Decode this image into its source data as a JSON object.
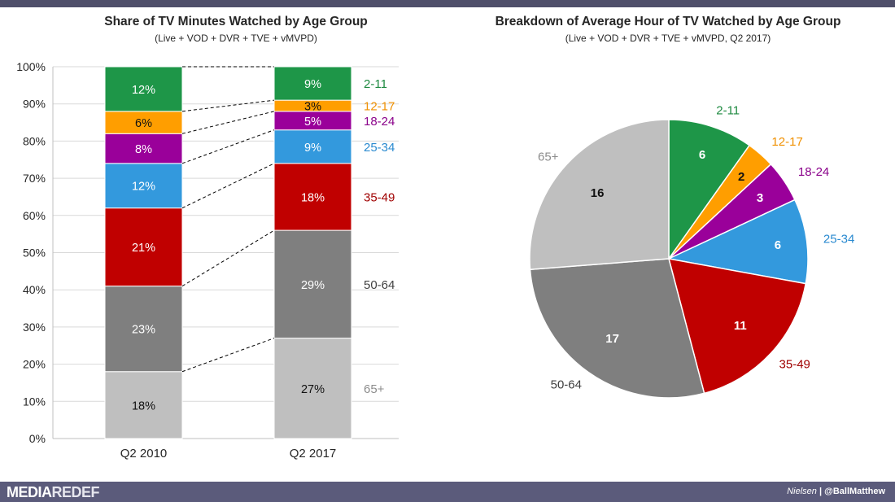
{
  "left_chart": {
    "title": "Share of TV Minutes Watched by Age Group",
    "subtitle": "(Live + VOD + DVR + TVE + vMVPD)"
  },
  "right_chart": {
    "title": "Breakdown of Average Hour of TV Watched by Age Group",
    "subtitle": "(Live + VOD + DVR + TVE + vMVPD, Q2 2017)"
  },
  "footer": {
    "logo_media": "MEDIA",
    "logo_redef": "REDEF",
    "source": "Nielsen",
    "separator": "|",
    "handle": "@BallMatthew"
  },
  "chart_data": [
    {
      "type": "bar",
      "stacked": true,
      "title": "Share of TV Minutes Watched by Age Group",
      "subtitle": "(Live + VOD + DVR + TVE + vMVPD)",
      "categories": [
        "Q2 2010",
        "Q2 2017"
      ],
      "ylim": [
        0,
        100
      ],
      "yticks": [
        "0%",
        "10%",
        "20%",
        "30%",
        "40%",
        "50%",
        "60%",
        "70%",
        "80%",
        "90%",
        "100%"
      ],
      "grid": true,
      "legend_position": "right",
      "series": [
        {
          "name": "65+",
          "values": [
            18,
            27
          ],
          "labels": [
            "18%",
            "27%"
          ],
          "color": "#bfbfbf",
          "label_color": "#111111",
          "legend_color": "#8c8c8c"
        },
        {
          "name": "50-64",
          "values": [
            23,
            29
          ],
          "labels": [
            "23%",
            "29%"
          ],
          "color": "#7f7f7f",
          "label_color": "#ffffff",
          "legend_color": "#404040"
        },
        {
          "name": "35-49",
          "values": [
            21,
            18
          ],
          "labels": [
            "21%",
            "18%"
          ],
          "color": "#c00000",
          "label_color": "#ffffff",
          "legend_color": "#a00000"
        },
        {
          "name": "25-34",
          "values": [
            12,
            9
          ],
          "labels": [
            "12%",
            "9%"
          ],
          "color": "#3399dd",
          "label_color": "#ffffff",
          "legend_color": "#2a8ad0"
        },
        {
          "name": "18-24",
          "values": [
            8,
            5
          ],
          "labels": [
            "8%",
            "5%"
          ],
          "color": "#9a009a",
          "label_color": "#ffffff",
          "legend_color": "#8a008a"
        },
        {
          "name": "12-17",
          "values": [
            6,
            3
          ],
          "labels": [
            "6%",
            "3%"
          ],
          "color": "#ff9e00",
          "label_color": "#111111",
          "legend_color": "#f09000"
        },
        {
          "name": "2-11",
          "values": [
            12,
            9
          ],
          "labels": [
            "12%",
            "9%"
          ],
          "color": "#1e9648",
          "label_color": "#ffffff",
          "legend_color": "#1e8a40"
        }
      ]
    },
    {
      "type": "pie",
      "title": "Breakdown of Average Hour of TV Watched by Age Group",
      "subtitle": "(Live + VOD + DVR + TVE + vMVPD, Q2 2017)",
      "unit": "minutes",
      "slices": [
        {
          "name": "2-11",
          "value": 6,
          "label": "6",
          "color": "#1e9648",
          "name_color": "#1e8a40",
          "value_color": "#ffffff"
        },
        {
          "name": "12-17",
          "value": 2,
          "label": "2",
          "color": "#ff9e00",
          "name_color": "#f09000",
          "value_color": "#111111"
        },
        {
          "name": "18-24",
          "value": 3,
          "label": "3",
          "color": "#9a009a",
          "name_color": "#8a008a",
          "value_color": "#ffffff"
        },
        {
          "name": "25-34",
          "value": 6,
          "label": "6",
          "color": "#3399dd",
          "name_color": "#2a8ad0",
          "value_color": "#ffffff"
        },
        {
          "name": "35-49",
          "value": 11,
          "label": "11",
          "color": "#c00000",
          "name_color": "#a00000",
          "value_color": "#ffffff"
        },
        {
          "name": "50-64",
          "value": 17,
          "label": "17",
          "color": "#7f7f7f",
          "name_color": "#404040",
          "value_color": "#ffffff"
        },
        {
          "name": "65+",
          "value": 16,
          "label": "16",
          "color": "#bfbfbf",
          "name_color": "#8c8c8c",
          "value_color": "#111111"
        }
      ]
    }
  ]
}
